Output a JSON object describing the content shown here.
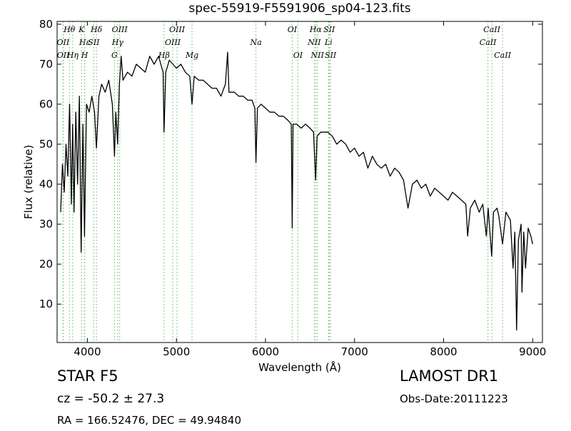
{
  "chart_data": {
    "type": "line",
    "title": "spec-55919-F5591906_sp04-123.fits",
    "x_label": "Wavelength (Å)",
    "y_label": "Flux (relative)",
    "xlim": [
      3660,
      9110
    ],
    "ylim": [
      0.4,
      80.7
    ],
    "xticks": [
      4000,
      5000,
      6000,
      7000,
      8000,
      9000
    ],
    "yticks": [
      10,
      20,
      30,
      40,
      50,
      60,
      70,
      80
    ],
    "x": [
      3700,
      3720,
      3740,
      3760,
      3780,
      3800,
      3820,
      3835,
      3850,
      3870,
      3890,
      3910,
      3930,
      3950,
      3968,
      3990,
      4020,
      4050,
      4080,
      4102,
      4130,
      4160,
      4200,
      4240,
      4280,
      4304,
      4320,
      4340,
      4360,
      4380,
      4400,
      4450,
      4500,
      4550,
      4600,
      4650,
      4700,
      4750,
      4800,
      4850,
      4861,
      4880,
      4920,
      4960,
      5000,
      5050,
      5100,
      5150,
      5175,
      5200,
      5250,
      5300,
      5350,
      5400,
      5450,
      5500,
      5550,
      5575,
      5590,
      5650,
      5700,
      5750,
      5800,
      5850,
      5880,
      5893,
      5910,
      5950,
      6000,
      6050,
      6100,
      6150,
      6200,
      6250,
      6290,
      6300,
      6310,
      6350,
      6400,
      6450,
      6500,
      6540,
      6563,
      6580,
      6620,
      6700,
      6750,
      6800,
      6850,
      6900,
      6950,
      7000,
      7050,
      7100,
      7150,
      7200,
      7250,
      7300,
      7350,
      7400,
      7450,
      7500,
      7550,
      7600,
      7650,
      7700,
      7750,
      7800,
      7850,
      7900,
      7950,
      8000,
      8050,
      8100,
      8150,
      8200,
      8250,
      8270,
      8300,
      8350,
      8400,
      8440,
      8480,
      8500,
      8540,
      8560,
      8600,
      8620,
      8662,
      8700,
      8750,
      8780,
      8800,
      8820,
      8840,
      8870,
      8880,
      8900,
      8920,
      8950,
      8980,
      9000
    ],
    "series": [
      {
        "name": "flux",
        "color": "#000000",
        "values": [
          33,
          45,
          38,
          50,
          42,
          60,
          35,
          55,
          33,
          58,
          40,
          62,
          23,
          55,
          27,
          60,
          58,
          62,
          58,
          49,
          62,
          65,
          63,
          66,
          60,
          47,
          58,
          50,
          65,
          72,
          66,
          68,
          67,
          70,
          69,
          68,
          72,
          70,
          72,
          68,
          53,
          68,
          71,
          70,
          69,
          70,
          68,
          67,
          60,
          67,
          66,
          66,
          65,
          64,
          64,
          62,
          65,
          73,
          63,
          63,
          62,
          62,
          61,
          61,
          59,
          45.5,
          59,
          60,
          59,
          58,
          58,
          57,
          57,
          56,
          55,
          29,
          55,
          55,
          54,
          55,
          54,
          53,
          41,
          52,
          53,
          53,
          52,
          50,
          51,
          50,
          48,
          49,
          47,
          48,
          44,
          47,
          45,
          44,
          45,
          42,
          44,
          43,
          41,
          34,
          40,
          41,
          39,
          40,
          37,
          39,
          38,
          37,
          36,
          38,
          37,
          36,
          35,
          27,
          34,
          36,
          33,
          35,
          27,
          34,
          22,
          33,
          34,
          32,
          25,
          33,
          31,
          19,
          28,
          3.5,
          26,
          30,
          13,
          28,
          19,
          29,
          27,
          25
        ]
      }
    ],
    "line_color": "#55bb55",
    "spectral_lines": [
      [
        {
          "label": "Hθ",
          "wavelength": 3798
        },
        {
          "label": "K",
          "wavelength": 3934
        },
        {
          "label": "Hδ",
          "wavelength": 4102
        },
        {
          "label": "OIII",
          "wavelength": 4363
        },
        {
          "label": "OIII",
          "wavelength": 5007
        },
        {
          "label": "OI",
          "wavelength": 6300
        },
        {
          "label": "Hα",
          "wavelength": 6563
        },
        {
          "label": "SII",
          "wavelength": 6716
        },
        {
          "label": "CaII",
          "wavelength": 8542
        }
      ],
      [
        {
          "label": "OII",
          "wavelength": 3727
        },
        {
          "label": "Hε",
          "wavelength": 3970
        },
        {
          "label": "SII",
          "wavelength": 4072
        },
        {
          "label": "Hγ",
          "wavelength": 4340
        },
        {
          "label": "OIII",
          "wavelength": 4959
        },
        {
          "label": "Na",
          "wavelength": 5893
        },
        {
          "label": "NII",
          "wavelength": 6548
        },
        {
          "label": "Li",
          "wavelength": 6708
        },
        {
          "label": "CaII",
          "wavelength": 8498
        }
      ],
      [
        {
          "label": "OII",
          "wavelength": 3729
        },
        {
          "label": "Hη",
          "wavelength": 3835
        },
        {
          "label": "H",
          "wavelength": 3969
        },
        {
          "label": "G",
          "wavelength": 4304
        },
        {
          "label": "Hβ",
          "wavelength": 4861
        },
        {
          "label": "Mg",
          "wavelength": 5175
        },
        {
          "label": "OI",
          "wavelength": 6364
        },
        {
          "label": "NII",
          "wavelength": 6583
        },
        {
          "label": "SII",
          "wavelength": 6731
        },
        {
          "label": "CaII",
          "wavelength": 8662
        }
      ]
    ],
    "annotations": {
      "object": "STAR   F5",
      "survey": "LAMOST DR1",
      "redshift": "cz = -50.2 ± 27.3",
      "date": "Obs-Date:20111223",
      "coords": "RA = 166.52476, DEC = 49.94840"
    }
  }
}
